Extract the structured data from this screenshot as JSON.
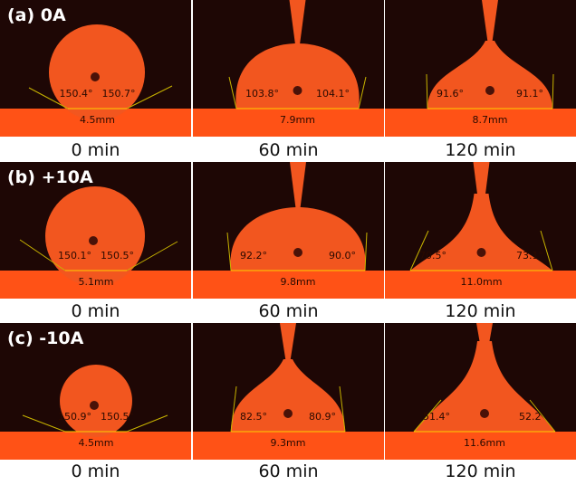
{
  "rows": [
    {
      "label": "(a) 0A",
      "panels": [
        {
          "time": "0 min",
          "left_angle": "150.4°",
          "right_angle": "150.7°",
          "width": "4.5mm"
        },
        {
          "time": "60 min",
          "left_angle": "103.8°",
          "right_angle": "104.1°",
          "width": "7.9mm"
        },
        {
          "time": "120 min",
          "left_angle": "91.6°",
          "right_angle": "91.1°",
          "width": "8.7mm"
        }
      ]
    },
    {
      "label": "(b) +10A",
      "panels": [
        {
          "time": "0 min",
          "left_angle": "150.1°",
          "right_angle": "150.5°",
          "width": "5.1mm"
        },
        {
          "time": "60 min",
          "left_angle": "92.2°",
          "right_angle": "90.0°",
          "width": "9.8mm"
        },
        {
          "time": "120 min",
          "left_angle": "70.5°",
          "right_angle": "73.1°",
          "width": "11.0mm"
        }
      ]
    },
    {
      "label": "(c) -10A",
      "panels": [
        {
          "time": "0 min",
          "left_angle": "150.9°",
          "right_angle": "150.5°",
          "width": "4.5mm"
        },
        {
          "time": "60 min",
          "left_angle": "82.5°",
          "right_angle": "80.9°",
          "width": "9.3mm"
        },
        {
          "time": "120 min",
          "left_angle": "51.4°",
          "right_angle": "52.2°",
          "width": "11.6mm"
        }
      ]
    }
  ],
  "colors": {
    "background": "#1e0705",
    "drop": "#f2561f",
    "substrate": "#ff5216",
    "tangent_lines": "#c8b400"
  }
}
